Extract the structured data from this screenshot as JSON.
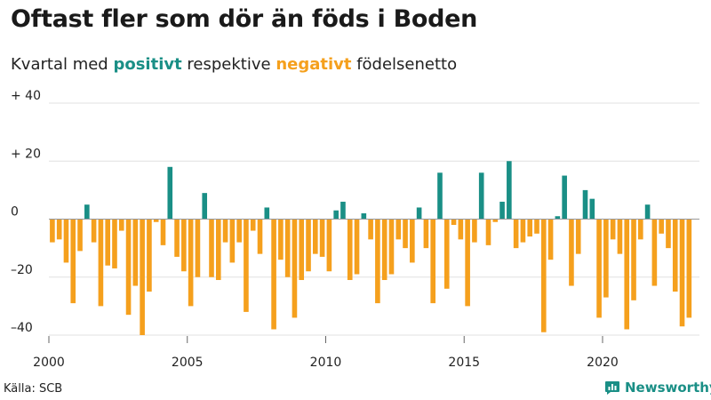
{
  "title_text": "Oftast fler som dör än föds i Boden",
  "subtitle": {
    "prefix": "Kvartal med ",
    "positive": "positivt",
    "middle": " respektive ",
    "negative": "negativt",
    "suffix": " födelsenetto"
  },
  "source": "Källa: SCB",
  "brand": "Newsworthy",
  "colors": {
    "positive": "#1a8f86",
    "negative": "#f5a01d",
    "grid": "#e0e0e0",
    "zero": "#999999"
  },
  "chart_data": {
    "type": "bar",
    "title": "Oftast fler som dör än föds i Boden",
    "subtitle": "Kvartal med positivt respektive negativt födelsenetto",
    "xlabel": "",
    "ylabel": "",
    "x_start": 2000.0,
    "x_step": 0.25,
    "xlim": [
      2000,
      2023.5
    ],
    "ylim": [
      -42,
      42
    ],
    "yticks": [
      40,
      20,
      0,
      -20,
      -40
    ],
    "ytick_labels": [
      "+ 40",
      "+ 20",
      "0",
      "–20",
      "–40"
    ],
    "xticks": [
      2000,
      2005,
      2010,
      2015,
      2020
    ],
    "xtick_labels": [
      "2000",
      "2005",
      "2010",
      "2015",
      "2020"
    ],
    "values": [
      -8,
      -7,
      -15,
      -29,
      -11,
      5,
      -8,
      -30,
      -16,
      -17,
      -4,
      -33,
      -23,
      -40,
      -25,
      -1,
      -9,
      18,
      -13,
      -18,
      -30,
      -20,
      9,
      -20,
      -21,
      -8,
      -15,
      -8,
      -32,
      -4,
      -12,
      4,
      -38,
      -14,
      -20,
      -34,
      -21,
      -18,
      -12,
      -13,
      -18,
      3,
      6,
      -21,
      -19,
      2,
      -7,
      -29,
      -21,
      -19,
      -7,
      -10,
      -15,
      4,
      -10,
      -29,
      16,
      -24,
      -2,
      -7,
      -30,
      -8,
      16,
      -9,
      -1,
      6,
      20,
      -10,
      -8,
      -6,
      -5,
      -39,
      -14,
      1,
      15,
      -23,
      -12,
      10,
      7,
      -34,
      -27,
      -7,
      -12,
      -38,
      -28,
      -7,
      5,
      -23,
      -5,
      -10,
      -25,
      -37,
      -34
    ]
  }
}
